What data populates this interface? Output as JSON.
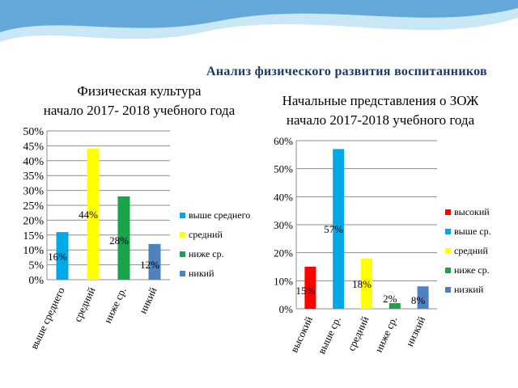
{
  "slide": {
    "title": "Анализ физического развития воспитанников",
    "colors": {
      "title": "#1f3864",
      "wave_dark": "#2c86c9",
      "wave_light": "#9fd4ef"
    }
  },
  "chart_data": [
    {
      "type": "bar",
      "title_lines": [
        "Физическая культура",
        "начало 2017- 2018 учебного года"
      ],
      "categories": [
        "выше среднего",
        "средний",
        "ниже ср.",
        "никий"
      ],
      "values": [
        16,
        44,
        28,
        12
      ],
      "value_labels": [
        "16%",
        "44%",
        "28%",
        "12%"
      ],
      "colors": [
        "#00a8e6",
        "#ffff00",
        "#1aa34a",
        "#4f81bd"
      ],
      "ylim": [
        0,
        50
      ],
      "yticks": [
        "0%",
        "5%",
        "10%",
        "15%",
        "20%",
        "25%",
        "30%",
        "35%",
        "40%",
        "45%",
        "50%"
      ],
      "grid": true,
      "legend": [
        "выше среднего",
        "средний",
        "ниже ср.",
        "никий"
      ],
      "legend_position": "right"
    },
    {
      "type": "bar",
      "title_lines": [
        "Начальные представления о ЗОЖ",
        "начало 2017-2018 учебного года"
      ],
      "categories": [
        "высокий",
        "выше ср.",
        "средний",
        "ниже ср.",
        "низкий"
      ],
      "values": [
        15,
        57,
        18,
        2,
        8
      ],
      "value_labels": [
        "15%",
        "57%",
        "18%",
        "2%",
        "8%"
      ],
      "colors": [
        "#ff0000",
        "#00a8e6",
        "#ffff00",
        "#1aa34a",
        "#4f81bd"
      ],
      "ylim": [
        0,
        60
      ],
      "yticks": [
        "0%",
        "10%",
        "20%",
        "30%",
        "40%",
        "50%",
        "60%"
      ],
      "grid": true,
      "legend": [
        "высокий",
        "выше ср.",
        "средний",
        "ниже ср.",
        "низкий"
      ],
      "legend_position": "right"
    }
  ]
}
